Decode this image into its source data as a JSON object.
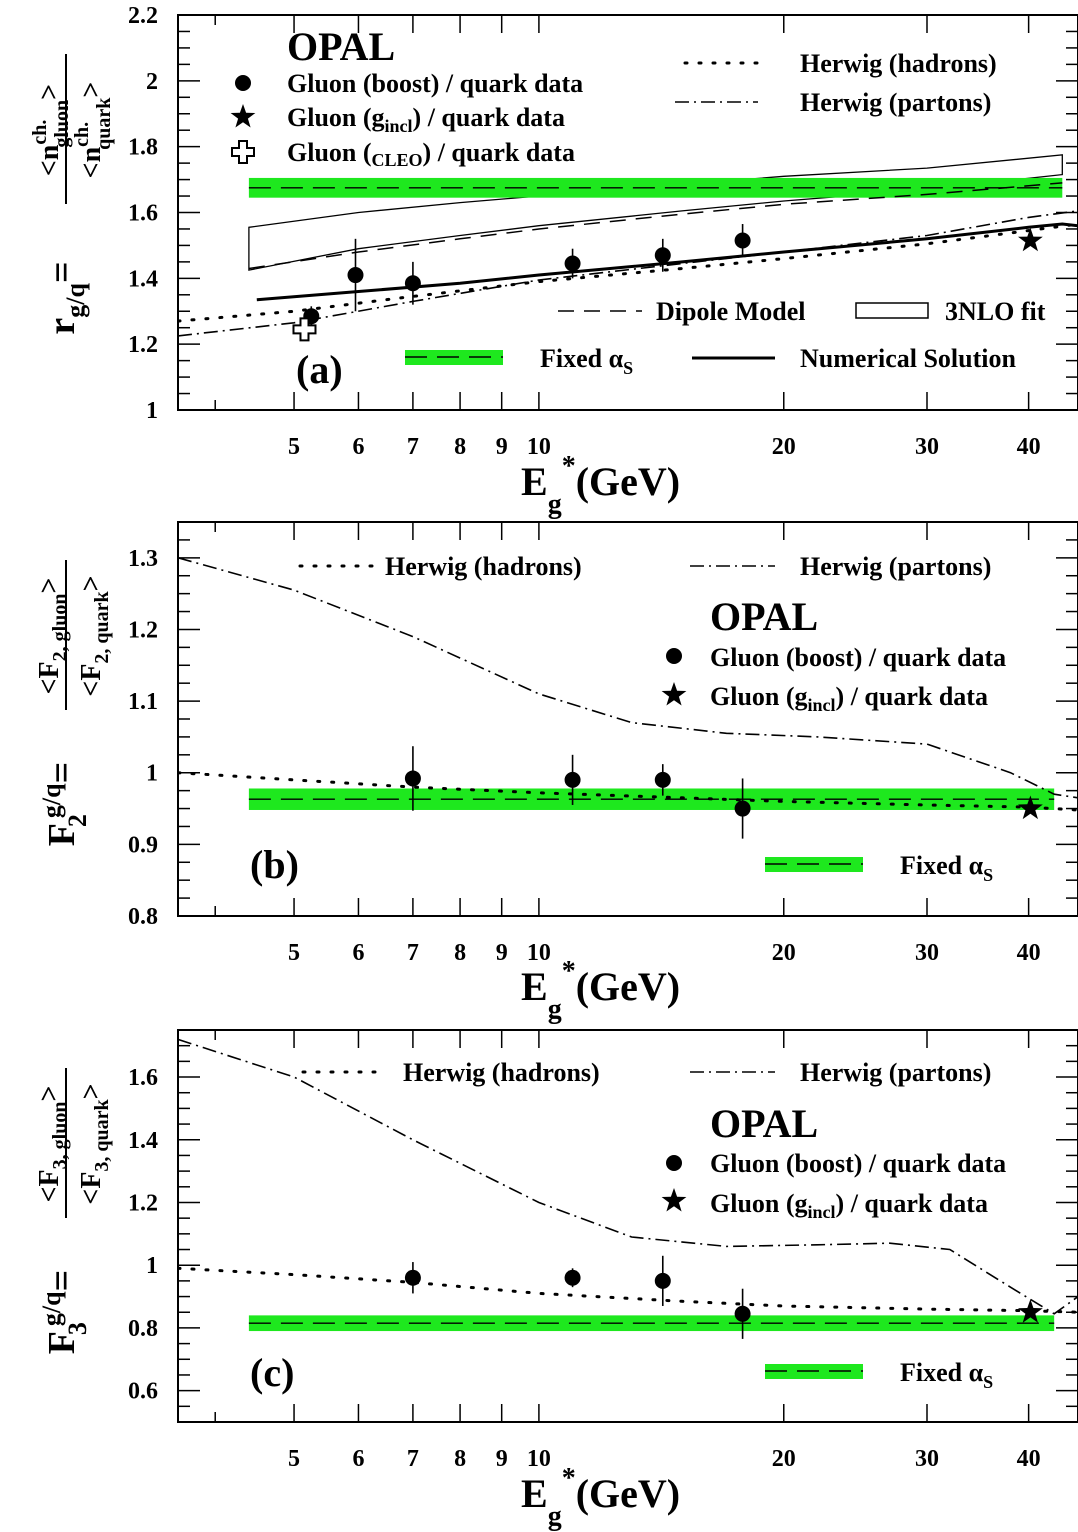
{
  "chart_data": [
    {
      "type": "scatter",
      "panel_label": "(a)",
      "experiment_label": "OPAL",
      "xlabel": "E_g*(GeV)",
      "ylabel": "r_g/q = <n_gluon^ch.>/<n_quark^ch.>",
      "xscale": "log",
      "xlim": [
        3.6,
        46
      ],
      "ylim": [
        1.0,
        2.2
      ],
      "xticks": [
        5,
        6,
        7,
        8,
        9,
        10,
        20,
        30,
        40
      ],
      "yticks": [
        1,
        1.2,
        1.4,
        1.6,
        1.8,
        2,
        2.2
      ],
      "legend": {
        "boost": "Gluon (boost) / quark data",
        "gincl_pre": "Gluon (g",
        "gincl_sub": "incl",
        "gincl_post": ")    / quark data",
        "cleo_pre": "Gluon (",
        "cleo_sub": "CLEO",
        "cleo_post": ") / quark data",
        "herwig_hadrons": "Herwig (hadrons)",
        "herwig_partons": "Herwig (partons)",
        "dipole": "Dipole Model",
        "nlo3": "3NLO fit",
        "fixed_pre": "Fixed α",
        "fixed_sub": "S",
        "numerical": "Numerical Solution"
      },
      "series": [
        {
          "name": "Gluon (boost) / quark data",
          "marker": "circle",
          "x": [
            5.25,
            5.95,
            7.0,
            11.0,
            14.2,
            17.8
          ],
          "y": [
            1.285,
            1.41,
            1.385,
            1.445,
            1.47,
            1.515
          ],
          "yerr": [
            0.03,
            0.11,
            0.065,
            0.045,
            0.05,
            0.05
          ]
        },
        {
          "name": "Gluon (g_incl) / quark data",
          "marker": "star",
          "x": [
            40.2
          ],
          "y": [
            1.514
          ],
          "yerr": [
            0.01
          ]
        },
        {
          "name": "Gluon (CLEO) / quark data",
          "marker": "open-cross",
          "x": [
            5.15
          ],
          "y": [
            1.245
          ],
          "yerr": [
            0.0
          ]
        },
        {
          "name": "Herwig (hadrons)",
          "style": "dotted",
          "x": [
            3.6,
            5,
            7,
            10,
            15,
            20,
            30,
            40,
            46
          ],
          "y": [
            1.27,
            1.3,
            1.345,
            1.39,
            1.43,
            1.46,
            1.505,
            1.545,
            1.565
          ]
        },
        {
          "name": "Herwig (partons)",
          "style": "dash-dot",
          "x": [
            3.6,
            5,
            7,
            10,
            15,
            20,
            30,
            40,
            46
          ],
          "y": [
            1.225,
            1.265,
            1.33,
            1.395,
            1.445,
            1.48,
            1.53,
            1.585,
            1.605
          ]
        },
        {
          "name": "Dipole Model",
          "style": "dashed",
          "x": [
            4.4,
            6,
            8,
            10,
            15,
            20,
            30,
            44
          ],
          "y": [
            1.43,
            1.48,
            1.52,
            1.55,
            1.595,
            1.625,
            1.655,
            1.69
          ]
        },
        {
          "name": "Numerical Solution",
          "style": "solid-thick",
          "x": [
            4.5,
            6,
            8,
            10,
            15,
            20,
            30,
            40,
            44,
            46
          ],
          "y": [
            1.335,
            1.36,
            1.385,
            1.41,
            1.45,
            1.48,
            1.52,
            1.555,
            1.565,
            1.56
          ]
        },
        {
          "name": "3NLO fit",
          "style": "band-outline",
          "x": [
            4.4,
            6,
            8,
            10,
            15,
            20,
            30,
            44
          ],
          "y_low": [
            1.425,
            1.49,
            1.53,
            1.56,
            1.605,
            1.635,
            1.67,
            1.715
          ],
          "y_high": [
            1.555,
            1.6,
            1.63,
            1.65,
            1.685,
            1.71,
            1.735,
            1.775
          ]
        },
        {
          "name": "Fixed αS",
          "style": "band-green",
          "x": [
            4.4,
            44
          ],
          "y_center": 1.675,
          "y_half": 0.03
        }
      ]
    },
    {
      "type": "scatter",
      "panel_label": "(b)",
      "experiment_label": "OPAL",
      "xlabel": "E_g*(GeV)",
      "ylabel": "F_2^g/q = <F_2,gluon>/<F_2,quark>",
      "xscale": "log",
      "xlim": [
        3.6,
        46
      ],
      "ylim": [
        0.8,
        1.35
      ],
      "xticks": [
        5,
        6,
        7,
        8,
        9,
        10,
        20,
        30,
        40
      ],
      "yticks": [
        0.8,
        0.9,
        1,
        1.1,
        1.2,
        1.3
      ],
      "legend": {
        "boost": "Gluon (boost) / quark data",
        "gincl_pre": "Gluon (g",
        "gincl_sub": "incl",
        "gincl_post": ")    / quark data",
        "herwig_hadrons": "Herwig (hadrons)",
        "herwig_partons": "Herwig (partons)",
        "fixed_pre": "Fixed α",
        "fixed_sub": "S"
      },
      "series": [
        {
          "name": "Gluon (boost) / quark data",
          "marker": "circle",
          "x": [
            7.0,
            11.0,
            14.2,
            17.8
          ],
          "y": [
            0.992,
            0.99,
            0.99,
            0.95
          ],
          "yerr": [
            0.045,
            0.035,
            0.022,
            0.042
          ]
        },
        {
          "name": "Gluon (g_incl) / quark data",
          "marker": "star",
          "x": [
            40.2
          ],
          "y": [
            0.95
          ],
          "yerr": [
            0.005
          ]
        },
        {
          "name": "Herwig (hadrons)",
          "style": "dotted",
          "x": [
            3.6,
            5,
            7,
            10,
            15,
            20,
            30,
            40,
            46
          ],
          "y": [
            1.0,
            0.99,
            0.98,
            0.972,
            0.965,
            0.96,
            0.955,
            0.952,
            0.948
          ]
        },
        {
          "name": "Herwig (partons)",
          "style": "dash-dot",
          "x": [
            3.6,
            5,
            7,
            10,
            13,
            17,
            22,
            30,
            38,
            43,
            46
          ],
          "y": [
            1.3,
            1.255,
            1.19,
            1.11,
            1.07,
            1.055,
            1.05,
            1.04,
            1.0,
            0.97,
            0.965
          ]
        },
        {
          "name": "Fixed αS",
          "style": "band-green",
          "x": [
            4.4,
            43
          ],
          "y_center": 0.963,
          "y_half": 0.015
        }
      ]
    },
    {
      "type": "scatter",
      "panel_label": "(c)",
      "experiment_label": "OPAL",
      "xlabel": "E_g*(GeV)",
      "ylabel": "F_3^g/q = <F_3,gluon>/<F_3,quark>",
      "xscale": "log",
      "xlim": [
        3.6,
        46
      ],
      "ylim": [
        0.5,
        1.75
      ],
      "xticks": [
        5,
        6,
        7,
        8,
        9,
        10,
        20,
        30,
        40
      ],
      "yticks": [
        0.6,
        0.8,
        1,
        1.2,
        1.4,
        1.6
      ],
      "legend": {
        "boost": "Gluon (boost) / quark data",
        "gincl_pre": "Gluon (g",
        "gincl_sub": "incl",
        "gincl_post": ")    / quark data",
        "herwig_hadrons": "Herwig (hadrons)",
        "herwig_partons": "Herwig (partons)",
        "fixed_pre": "Fixed α",
        "fixed_sub": "S"
      },
      "series": [
        {
          "name": "Gluon (boost) / quark data",
          "marker": "circle",
          "x": [
            7.0,
            11.0,
            14.2,
            17.8
          ],
          "y": [
            0.96,
            0.96,
            0.95,
            0.845
          ],
          "yerr": [
            0.05,
            0.03,
            0.08,
            0.08
          ]
        },
        {
          "name": "Gluon (g_incl) / quark data",
          "marker": "star",
          "x": [
            40.2
          ],
          "y": [
            0.85
          ],
          "yerr": [
            0.01
          ]
        },
        {
          "name": "Herwig (hadrons)",
          "style": "dotted",
          "x": [
            3.6,
            5,
            7,
            10,
            15,
            20,
            30,
            40,
            46
          ],
          "y": [
            0.99,
            0.97,
            0.945,
            0.91,
            0.885,
            0.87,
            0.86,
            0.855,
            0.85
          ]
        },
        {
          "name": "Herwig (partons)",
          "style": "dash-dot",
          "x": [
            3.6,
            5,
            7,
            10,
            13,
            17,
            22,
            27,
            32,
            38,
            43,
            46
          ],
          "y": [
            1.72,
            1.6,
            1.4,
            1.2,
            1.09,
            1.06,
            1.065,
            1.07,
            1.05,
            0.93,
            0.845,
            0.9
          ]
        },
        {
          "name": "Fixed αS",
          "style": "band-green",
          "x": [
            4.4,
            43
          ],
          "y_center": 0.815,
          "y_half": 0.025
        }
      ]
    }
  ]
}
